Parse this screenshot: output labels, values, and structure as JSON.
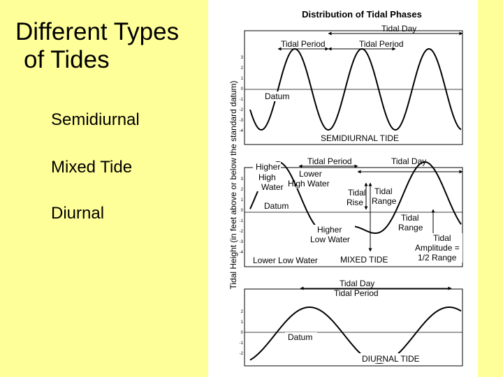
{
  "slide": {
    "title_line1": "Different Types",
    "title_line2": "of Tides",
    "bullets": [
      "Semidiurnal",
      "Mixed Tide",
      "Diurnal"
    ]
  },
  "figure": {
    "title": "Distribution of Tidal Phases",
    "y_axis_label": "Tidal Height (in feet above or below the standard datum)",
    "panels": {
      "semidiurnal": {
        "label": "SEMIDIURNAL TIDE",
        "ticks": [
          "3",
          "2",
          "1",
          "0",
          "-1",
          "-2",
          "-3",
          "-4"
        ],
        "annotations": {
          "tidal_day": "Tidal Day",
          "tidal_period_1": "Tidal Period",
          "tidal_period_2": "Tidal Period",
          "datum": "Datum"
        }
      },
      "mixed": {
        "label": "MIXED TIDE",
        "ticks": [
          "3",
          "2",
          "1",
          "0",
          "-1",
          "-2",
          "-3",
          "-4"
        ],
        "annotations": {
          "tidal_period": "Tidal Period",
          "tidal_day": "Tidal Day",
          "higher_high_water": [
            "Higher",
            "High",
            "Water"
          ],
          "lower_high_water": [
            "Lower",
            "High Water"
          ],
          "tidal_rise": [
            "Tidal",
            "Rise"
          ],
          "tidal_range": [
            "Tidal",
            "Range"
          ],
          "tidal_range_2": [
            "Tidal",
            "Range"
          ],
          "datum": "Datum",
          "higher_low_water": [
            "Higher",
            "Low Water"
          ],
          "lower_low_water": "Lower Low Water",
          "tidal_amplitude": [
            "Tidal",
            "Amplitude =",
            "1/2 Range"
          ]
        }
      },
      "diurnal": {
        "label": "DIURNAL TIDE",
        "ticks": [
          "2",
          "1",
          "0",
          "-1",
          "-2"
        ],
        "annotations": {
          "tidal_day": "Tidal Day",
          "tidal_period": "Tidal Period",
          "datum": "Datum"
        }
      }
    }
  }
}
